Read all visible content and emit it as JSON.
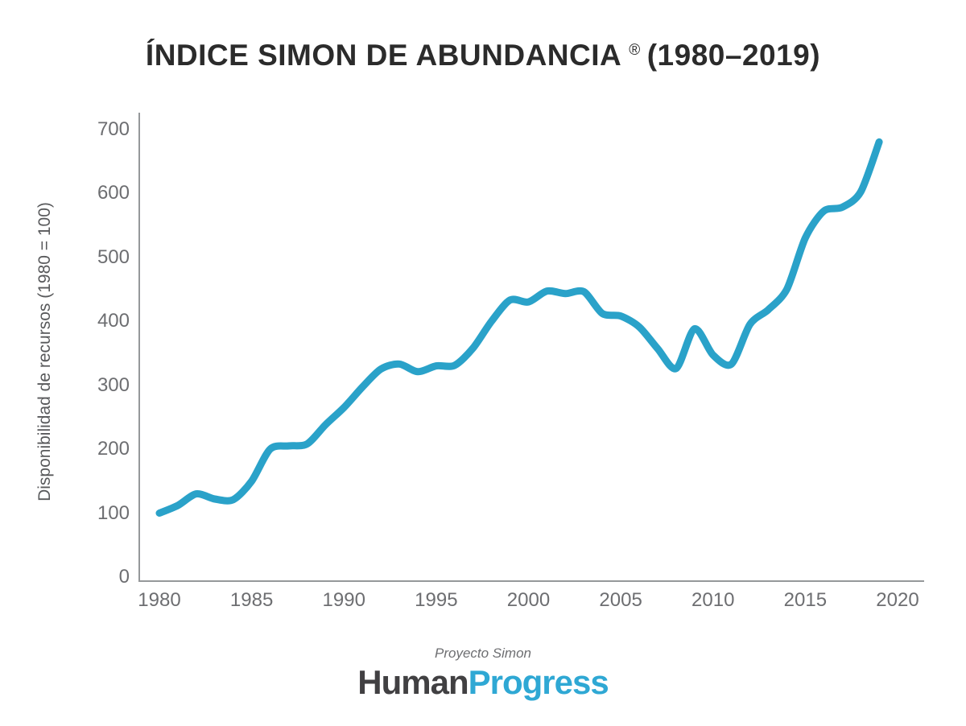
{
  "header": {
    "title": "ÍNDICE SIMON DE ABUNDANCIA",
    "registered_mark": "®",
    "period": "(1980–2019)"
  },
  "chart_data": {
    "type": "line",
    "title": "ÍNDICE SIMON DE ABUNDANCIA ® (1980–2019)",
    "xlabel": "",
    "ylabel": "Disponibilidad de recursos (1980 = 100)",
    "x": [
      1980,
      1981,
      1982,
      1983,
      1984,
      1985,
      1986,
      1987,
      1988,
      1989,
      1990,
      1991,
      1992,
      1993,
      1994,
      1995,
      1996,
      1997,
      1998,
      1999,
      2000,
      2001,
      2002,
      2003,
      2004,
      2005,
      2006,
      2007,
      2008,
      2009,
      2010,
      2011,
      2012,
      2013,
      2014,
      2015,
      2016,
      2017,
      2018,
      2019
    ],
    "series": [
      {
        "name": "Índice Simon de Abundancia",
        "values": [
          100,
          112,
          130,
          122,
          121,
          150,
          200,
          205,
          208,
          238,
          265,
          297,
          325,
          333,
          321,
          330,
          331,
          358,
          400,
          433,
          430,
          447,
          443,
          446,
          412,
          408,
          391,
          357,
          326,
          388,
          347,
          333,
          395,
          418,
          450,
          530,
          572,
          578,
          602,
          680
        ]
      }
    ],
    "xticks": [
      1980,
      1985,
      1990,
      1995,
      2000,
      2005,
      2010,
      2015,
      2020
    ],
    "yticks": [
      0,
      100,
      200,
      300,
      400,
      500,
      600,
      700
    ],
    "xlim": [
      1978.9,
      2021.4
    ],
    "ylim": [
      0,
      700
    ],
    "grid": false,
    "legend": false
  },
  "footer": {
    "subtitle": "Proyecto Simon",
    "logo_part1": "Human",
    "logo_part2": "Progress"
  },
  "colors": {
    "line": "#2aa2c9",
    "axis": "#95989a",
    "tick_text": "#6d6e71",
    "title_text": "#2b2b2b",
    "y_axis_title_text": "#58595b",
    "logo_human": "#414042",
    "logo_progress": "#2fa8d4"
  }
}
